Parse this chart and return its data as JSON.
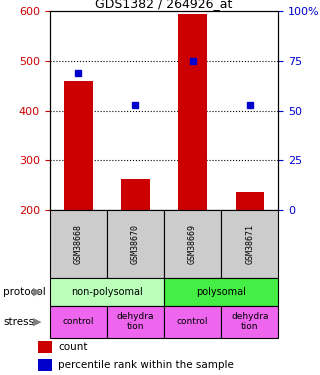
{
  "title": "GDS1382 / 264926_at",
  "samples": [
    "GSM38668",
    "GSM38670",
    "GSM38669",
    "GSM38671"
  ],
  "counts": [
    460,
    263,
    594,
    237
  ],
  "percentiles": [
    69,
    53,
    75,
    53
  ],
  "ylim_left": [
    200,
    600
  ],
  "ylim_right": [
    0,
    100
  ],
  "yticks_left": [
    200,
    300,
    400,
    500,
    600
  ],
  "yticks_right": [
    0,
    25,
    50,
    75,
    100
  ],
  "bar_color": "#cc0000",
  "dot_color": "#0000cc",
  "protocol_labels": [
    "non-polysomal",
    "polysomal"
  ],
  "protocol_colors": [
    "#bbffbb",
    "#44ee44"
  ],
  "stress_labels": [
    "control",
    "dehydra\ntion",
    "control",
    "dehydra\ntion"
  ],
  "stress_color": "#ee66ee",
  "grid_color": "#000000",
  "sample_box_color": "#cccccc",
  "left_axis_color": "#cc0000",
  "right_axis_color": "#0000cc",
  "bar_width": 0.5,
  "fig_width": 3.2,
  "fig_height": 3.75,
  "dpi": 100
}
